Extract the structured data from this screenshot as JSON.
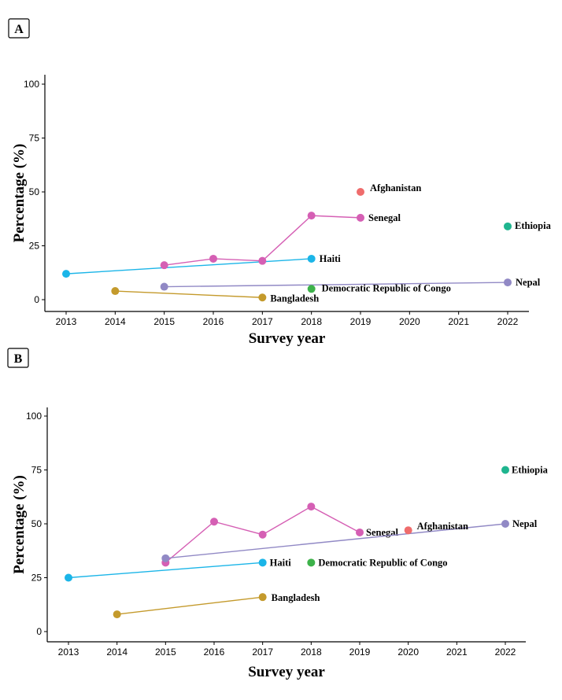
{
  "chart_data": [
    {
      "type": "line",
      "panel": "A",
      "title": "",
      "xlabel": "Survey year",
      "ylabel": "Percentage (%)",
      "xlim": [
        2012.8,
        2022.5
      ],
      "ylim": [
        -5,
        105
      ],
      "xticks": [
        2013,
        2014,
        2015,
        2016,
        2017,
        2018,
        2019,
        2020,
        2021,
        2022
      ],
      "yticks": [
        0,
        25,
        50,
        75,
        100
      ],
      "grid": false,
      "series": [
        {
          "name": "Haiti",
          "color": "#1BB5E8",
          "x": [
            2013,
            2018
          ],
          "y": [
            12,
            19
          ]
        },
        {
          "name": "Senegal",
          "color": "#D55FB4",
          "x": [
            2015,
            2016,
            2017,
            2018,
            2019
          ],
          "y": [
            16,
            19,
            18,
            39,
            38
          ]
        },
        {
          "name": "Bangladesh",
          "color": "#C49A2C",
          "x": [
            2014,
            2017
          ],
          "y": [
            4,
            1
          ]
        },
        {
          "name": "Nepal",
          "color": "#9189C5",
          "x": [
            2015,
            2022
          ],
          "y": [
            6,
            8
          ]
        },
        {
          "name": "Democratic Republic of Congo",
          "color": "#3DB24A",
          "x": [
            2018
          ],
          "y": [
            5
          ]
        },
        {
          "name": "Afghanistan",
          "color": "#EF6C6C",
          "x": [
            2019
          ],
          "y": [
            50
          ]
        },
        {
          "name": "Ethiopia",
          "color": "#1FB58F",
          "x": [
            2022
          ],
          "y": [
            34
          ]
        }
      ]
    },
    {
      "type": "line",
      "panel": "B",
      "title": "",
      "xlabel": "Survey year",
      "ylabel": "Percentage (%)",
      "xlim": [
        2012.8,
        2022.5
      ],
      "ylim": [
        -5,
        105
      ],
      "xticks": [
        2013,
        2014,
        2015,
        2016,
        2017,
        2018,
        2019,
        2020,
        2021,
        2022
      ],
      "yticks": [
        0,
        25,
        50,
        75,
        100
      ],
      "grid": false,
      "series": [
        {
          "name": "Haiti",
          "color": "#1BB5E8",
          "x": [
            2013,
            2017
          ],
          "y": [
            25,
            32
          ]
        },
        {
          "name": "Senegal",
          "color": "#D55FB4",
          "x": [
            2015,
            2016,
            2017,
            2018,
            2019
          ],
          "y": [
            32,
            51,
            45,
            58,
            46
          ]
        },
        {
          "name": "Bangladesh",
          "color": "#C49A2C",
          "x": [
            2014,
            2017
          ],
          "y": [
            8,
            16
          ]
        },
        {
          "name": "Nepal",
          "color": "#9189C5",
          "x": [
            2015,
            2022
          ],
          "y": [
            34,
            50
          ]
        },
        {
          "name": "Democratic Republic of Congo",
          "color": "#3DB24A",
          "x": [
            2018
          ],
          "y": [
            32
          ]
        },
        {
          "name": "Afghanistan",
          "color": "#EF6C6C",
          "x": [
            2020
          ],
          "y": [
            47
          ]
        },
        {
          "name": "Ethiopia",
          "color": "#1FB58F",
          "x": [
            2022
          ],
          "y": [
            75
          ]
        }
      ]
    }
  ]
}
